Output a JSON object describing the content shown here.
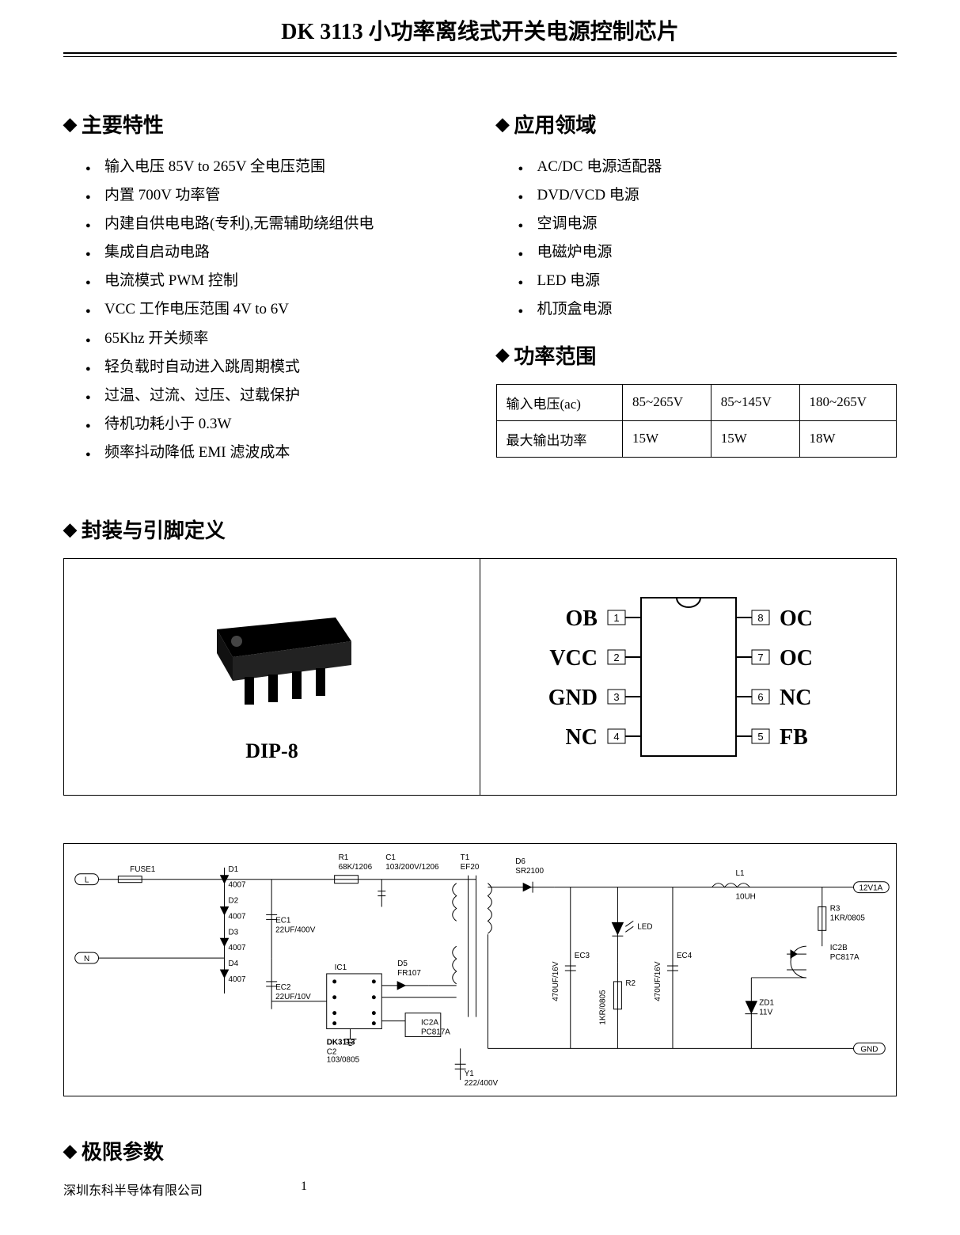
{
  "header": {
    "title": "DK 3113 小功率离线式开关电源控制芯片"
  },
  "features": {
    "heading": "主要特性",
    "items": [
      "输入电压 85V to 265V 全电压范围",
      "内置 700V 功率管",
      "内建自供电电路(专利),无需辅助绕组供电",
      "集成自启动电路",
      "电流模式 PWM 控制",
      "VCC 工作电压范围 4V to 6V",
      "65Khz 开关频率",
      "轻负载时自动进入跳周期模式",
      "过温、过流、过压、过载保护",
      "待机功耗小于 0.3W",
      "频率抖动降低 EMI 滤波成本"
    ]
  },
  "applications": {
    "heading": "应用领域",
    "items": [
      "AC/DC 电源适配器",
      "DVD/VCD 电源",
      "空调电源",
      "电磁炉电源",
      "LED 电源",
      "机顶盒电源"
    ]
  },
  "power_range": {
    "heading": "功率范围",
    "row1_label": "输入电压(ac)",
    "row1": [
      "85~265V",
      "85~145V",
      "180~265V"
    ],
    "row2_label": "最大输出功率",
    "row2": [
      "15W",
      "15W",
      "18W"
    ]
  },
  "package": {
    "heading": "封装与引脚定义",
    "dip_label": "DIP-8",
    "pins_left": [
      {
        "num": "1",
        "label": "OB"
      },
      {
        "num": "2",
        "label": "VCC"
      },
      {
        "num": "3",
        "label": "GND"
      },
      {
        "num": "4",
        "label": "NC"
      }
    ],
    "pins_right": [
      {
        "num": "8",
        "label": "OC"
      },
      {
        "num": "7",
        "label": "OC"
      },
      {
        "num": "6",
        "label": "NC"
      },
      {
        "num": "5",
        "label": "FB"
      }
    ]
  },
  "schematic": {
    "labels": {
      "fuse": "FUSE1",
      "L": "L",
      "N": "N",
      "d1": "D1",
      "d1v": "4007",
      "d2": "D2",
      "d2v": "4007",
      "d3": "D3",
      "d3v": "4007",
      "d4": "D4",
      "d4v": "4007",
      "r1": "R1",
      "r1v": "68K/1206",
      "c1": "C1",
      "c1v": "103/200V/1206",
      "ec1": "EC1",
      "ec1v": "22UF/400V",
      "ec2": "EC2",
      "ec2v": "22UF/10V",
      "ic1": "IC1",
      "d5": "D5",
      "d5v": "FR107",
      "t1": "T1",
      "t1v": "EF20",
      "dk": "DK3113",
      "c2": "C2",
      "c2v": "103/0805",
      "ic2a": "IC2A",
      "ic2av": "PC817A",
      "y1": "Y1",
      "y1v": "222/400V",
      "d6": "D6",
      "d6v": "SR2100",
      "l1": "L1",
      "l1v": "10UH",
      "led": "LED",
      "ec3": "EC3",
      "ec3v": "470UF/16V",
      "r2": "R2",
      "r2v": "1KR/0805",
      "ec4": "EC4",
      "ec4v": "470UF/16V",
      "r3": "R3",
      "r3v": "1KR/0805",
      "ic2b": "IC2B",
      "ic2bv": "PC817A",
      "zd1": "ZD1",
      "zd1v": "11V",
      "out12v": "12V1A",
      "gnd": "GND"
    }
  },
  "limits": {
    "heading": "极限参数"
  },
  "footer": {
    "company": "深圳东科半导体有限公司",
    "page": "1"
  }
}
